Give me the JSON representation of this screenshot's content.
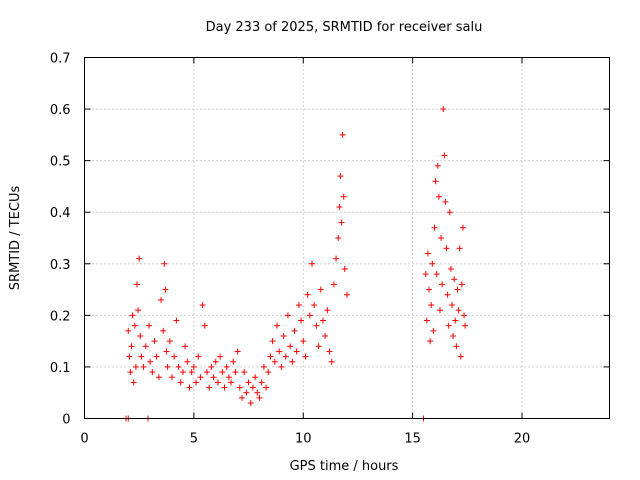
{
  "chart_data": {
    "type": "scatter",
    "title": "Day 233 of 2025, SRMTID for receiver salu",
    "xlabel": "GPS time / hours",
    "ylabel": "SRMTID / TECUs",
    "xlim": [
      0,
      24
    ],
    "ylim": [
      0,
      0.7
    ],
    "x_ticks": [
      0,
      5,
      10,
      15,
      20
    ],
    "y_ticks": [
      0,
      0.1,
      0.2,
      0.3,
      0.4,
      0.5,
      0.6,
      0.7
    ],
    "x_tick_labels": [
      "0",
      "5",
      "10",
      "15",
      "20"
    ],
    "y_tick_labels": [
      "0",
      "0.1",
      "0.2",
      "0.3",
      "0.4",
      "0.5",
      "0.6",
      "0.7"
    ],
    "grid": true,
    "marker": "plus",
    "color": "#ff0000",
    "series": [
      {
        "name": "SRMTID",
        "x": [
          1.9,
          2.0,
          2.0,
          2.05,
          2.1,
          2.15,
          2.2,
          2.25,
          2.3,
          2.35,
          2.4,
          2.45,
          2.5,
          2.55,
          2.6,
          2.7,
          2.8,
          2.9,
          2.95,
          3.0,
          3.1,
          3.2,
          3.3,
          3.4,
          3.5,
          3.6,
          3.65,
          3.7,
          3.75,
          3.8,
          3.9,
          4.0,
          4.1,
          4.2,
          4.3,
          4.4,
          4.5,
          4.6,
          4.7,
          4.8,
          4.9,
          5.0,
          5.1,
          5.2,
          5.3,
          5.4,
          5.5,
          5.6,
          5.7,
          5.8,
          5.9,
          6.0,
          6.1,
          6.2,
          6.3,
          6.4,
          6.5,
          6.6,
          6.7,
          6.8,
          6.9,
          7.0,
          7.1,
          7.2,
          7.3,
          7.4,
          7.5,
          7.6,
          7.7,
          7.8,
          7.9,
          8.0,
          8.1,
          8.2,
          8.3,
          8.4,
          8.5,
          8.6,
          8.7,
          8.8,
          8.9,
          9.0,
          9.1,
          9.2,
          9.3,
          9.4,
          9.5,
          9.6,
          9.7,
          9.8,
          9.9,
          10.0,
          10.1,
          10.2,
          10.3,
          10.4,
          10.5,
          10.6,
          10.7,
          10.8,
          10.9,
          11.0,
          11.1,
          11.2,
          11.3,
          11.4,
          11.5,
          11.6,
          11.65,
          11.7,
          11.75,
          11.8,
          11.85,
          11.9,
          12.0,
          15.5,
          15.6,
          15.65,
          15.7,
          15.75,
          15.8,
          15.85,
          15.9,
          15.95,
          16.0,
          16.05,
          16.1,
          16.15,
          16.2,
          16.25,
          16.3,
          16.35,
          16.4,
          16.45,
          16.5,
          16.55,
          16.6,
          16.65,
          16.7,
          16.75,
          16.8,
          16.85,
          16.9,
          16.95,
          17.0,
          17.05,
          17.1,
          17.15,
          17.2,
          17.25,
          17.3,
          17.35,
          17.4
        ],
        "y": [
          0.0,
          0.0,
          0.17,
          0.12,
          0.09,
          0.14,
          0.2,
          0.07,
          0.18,
          0.1,
          0.26,
          0.21,
          0.31,
          0.16,
          0.12,
          0.1,
          0.14,
          0.0,
          0.18,
          0.11,
          0.09,
          0.15,
          0.12,
          0.08,
          0.23,
          0.17,
          0.3,
          0.25,
          0.13,
          0.1,
          0.15,
          0.08,
          0.12,
          0.19,
          0.1,
          0.07,
          0.09,
          0.14,
          0.11,
          0.06,
          0.09,
          0.1,
          0.07,
          0.12,
          0.08,
          0.22,
          0.18,
          0.09,
          0.06,
          0.1,
          0.08,
          0.11,
          0.07,
          0.12,
          0.09,
          0.06,
          0.1,
          0.08,
          0.07,
          0.11,
          0.09,
          0.13,
          0.06,
          0.04,
          0.09,
          0.05,
          0.07,
          0.03,
          0.06,
          0.08,
          0.05,
          0.04,
          0.07,
          0.1,
          0.06,
          0.09,
          0.12,
          0.15,
          0.11,
          0.18,
          0.13,
          0.1,
          0.16,
          0.12,
          0.2,
          0.14,
          0.11,
          0.17,
          0.13,
          0.22,
          0.19,
          0.15,
          0.12,
          0.24,
          0.2,
          0.3,
          0.22,
          0.18,
          0.14,
          0.25,
          0.19,
          0.16,
          0.21,
          0.13,
          0.11,
          0.26,
          0.31,
          0.35,
          0.41,
          0.47,
          0.38,
          0.55,
          0.43,
          0.29,
          0.24,
          0.0,
          0.28,
          0.19,
          0.32,
          0.25,
          0.15,
          0.22,
          0.3,
          0.17,
          0.37,
          0.46,
          0.28,
          0.49,
          0.43,
          0.21,
          0.35,
          0.26,
          0.6,
          0.51,
          0.42,
          0.33,
          0.24,
          0.18,
          0.4,
          0.29,
          0.22,
          0.16,
          0.27,
          0.19,
          0.14,
          0.25,
          0.21,
          0.33,
          0.12,
          0.26,
          0.37,
          0.2,
          0.18
        ]
      }
    ]
  }
}
